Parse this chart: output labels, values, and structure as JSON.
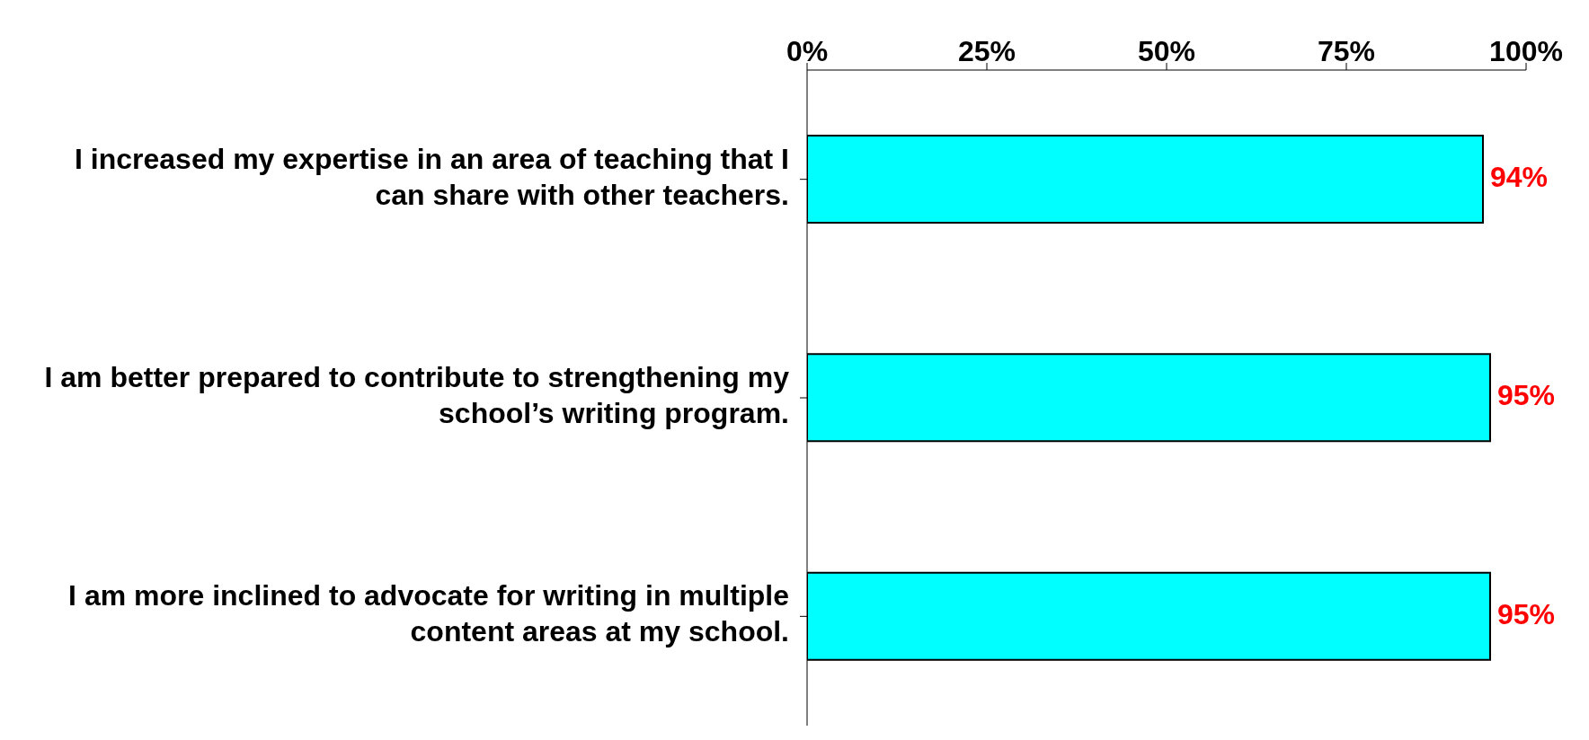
{
  "chart_data": {
    "type": "bar",
    "orientation": "horizontal",
    "categories": [
      "I increased my expertise in an area of teaching that I can share with other teachers.",
      "I am better prepared to contribute to strengthening my school’s writing program.",
      "I am more inclined to advocate for writing in multiple content areas at my school."
    ],
    "series": [
      {
        "color": "#00ffff",
        "values": [
          94,
          95,
          95
        ],
        "value_labels": [
          "94%",
          "95%",
          "95%"
        ]
      }
    ],
    "xlim": [
      0,
      100
    ],
    "xticks": [
      {
        "value": 0,
        "label": "0%"
      },
      {
        "value": 25,
        "label": "25%"
      },
      {
        "value": 50,
        "label": "50%"
      },
      {
        "value": 75,
        "label": "75%"
      },
      {
        "value": 100,
        "label": "100%"
      }
    ],
    "grid": false,
    "legend": false
  }
}
